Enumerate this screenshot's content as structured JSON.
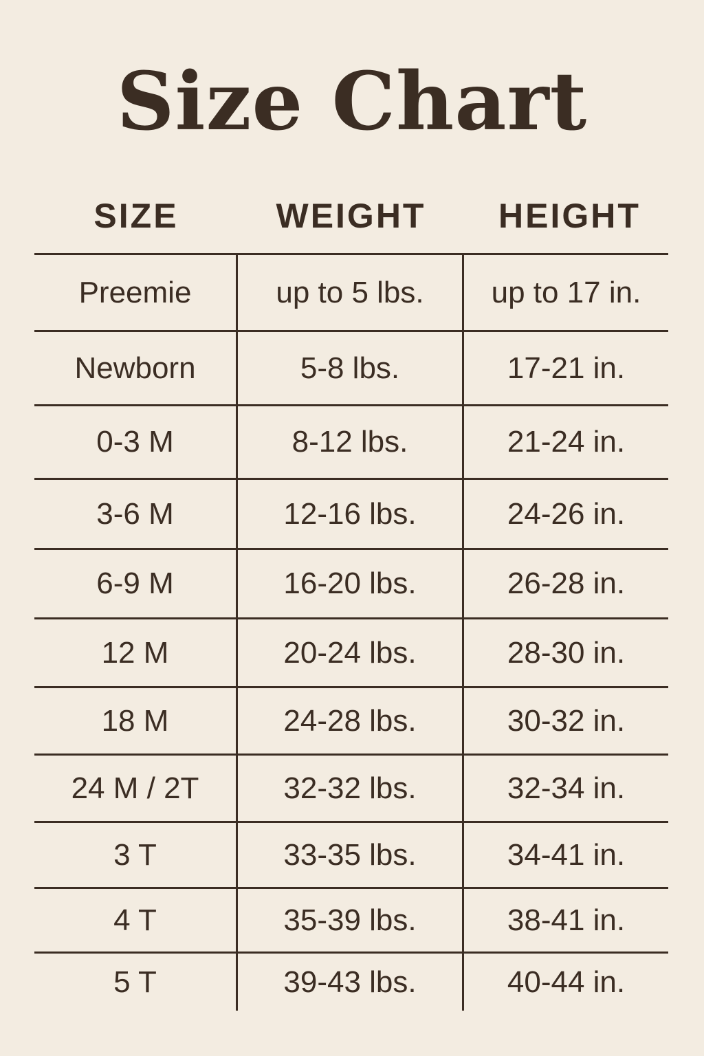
{
  "title": "Size Chart",
  "colors": {
    "background": "#f3ece1",
    "text": "#3b2d23"
  },
  "headers": [
    "SIZE",
    "WEIGHT",
    "HEIGHT"
  ],
  "rows": [
    [
      "Preemie",
      "up to 5 lbs.",
      "up to 17 in."
    ],
    [
      "Newborn",
      "5-8 lbs.",
      "17-21 in."
    ],
    [
      "0-3 M",
      "8-12 lbs.",
      "21-24 in."
    ],
    [
      "3-6 M",
      "12-16 lbs.",
      "24-26 in."
    ],
    [
      "6-9 M",
      "16-20 lbs.",
      "26-28 in."
    ],
    [
      "12 M",
      "20-24 lbs.",
      "28-30 in."
    ],
    [
      "18 M",
      "24-28 lbs.",
      "30-32 in."
    ],
    [
      "24 M / 2T",
      "32-32 lbs.",
      "32-34 in."
    ],
    [
      "3 T",
      "33-35 lbs.",
      "34-41 in."
    ],
    [
      "4 T",
      "35-39 lbs.",
      "38-41 in."
    ],
    [
      "5 T",
      "39-43 lbs.",
      "40-44 in."
    ]
  ]
}
